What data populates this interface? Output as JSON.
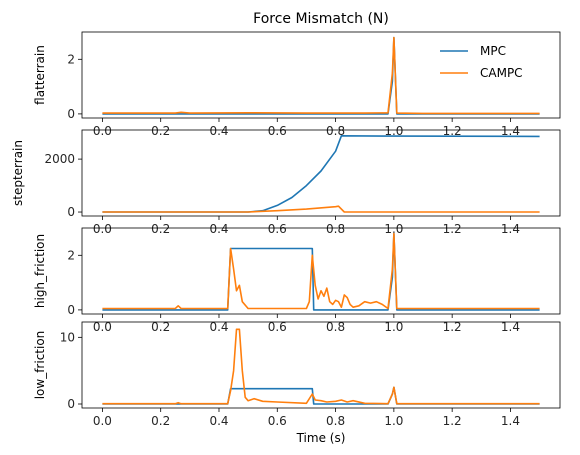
{
  "chart_data": {
    "type": "line",
    "title": "Force Mismatch (N)",
    "xlabel": "Time (s)",
    "xlim": [
      -0.07,
      1.57
    ],
    "x_ticks": [
      0.0,
      0.2,
      0.4,
      0.6,
      0.8,
      1.0,
      1.2,
      1.4
    ],
    "x_tick_labels": [
      "0.0",
      "0.2",
      "0.4",
      "0.6",
      "0.8",
      "1.0",
      "1.2",
      "1.4"
    ],
    "legend": {
      "placement": "top-right",
      "entries": [
        "MPC",
        "CAMPC"
      ]
    },
    "colors": {
      "MPC": "#1f77b4",
      "CAMPC": "#ff7f0e"
    },
    "grid": false,
    "subplots": [
      {
        "ylabel": "flatterrain",
        "ylim": [
          -0.15,
          3.0
        ],
        "y_ticks": [
          0,
          2
        ],
        "y_tick_labels": [
          "0",
          "2"
        ],
        "series": [
          {
            "name": "MPC",
            "x": [
              0.0,
              0.98,
              0.995,
              1.0,
              1.01,
              1.5
            ],
            "y": [
              0.0,
              0.0,
              1.2,
              2.8,
              0.0,
              0.0
            ]
          },
          {
            "name": "CAMPC",
            "x": [
              0.0,
              0.1,
              0.25,
              0.27,
              0.3,
              0.5,
              0.7,
              0.9,
              0.98,
              0.995,
              1.0,
              1.01,
              1.1,
              1.3,
              1.5
            ],
            "y": [
              0.03,
              0.03,
              0.03,
              0.06,
              0.03,
              0.04,
              0.03,
              0.03,
              0.04,
              1.5,
              2.8,
              0.03,
              0.02,
              0.02,
              0.02
            ]
          }
        ]
      },
      {
        "ylabel": "stepterrain",
        "ylim": [
          -150,
          3100
        ],
        "y_ticks": [
          0,
          2000
        ],
        "y_tick_labels": [
          "0",
          "2000"
        ],
        "series": [
          {
            "name": "MPC",
            "x": [
              0.0,
              0.5,
              0.55,
              0.6,
              0.65,
              0.7,
              0.75,
              0.8,
              0.82,
              1.0,
              1.5
            ],
            "y": [
              0.0,
              0.0,
              50,
              250,
              550,
              1000,
              1550,
              2300,
              2880,
              2870,
              2860
            ]
          },
          {
            "name": "CAMPC",
            "x": [
              0.0,
              0.5,
              0.6,
              0.7,
              0.8,
              0.81,
              0.83,
              1.0,
              1.5
            ],
            "y": [
              0.0,
              0.0,
              50,
              110,
              200,
              220,
              0.0,
              0.0,
              0.0
            ]
          }
        ]
      },
      {
        "ylabel": "high_friction",
        "ylim": [
          -0.15,
          3.0
        ],
        "y_ticks": [
          0,
          2
        ],
        "y_tick_labels": [
          "0",
          "2"
        ],
        "series": [
          {
            "name": "MPC",
            "x": [
              0.0,
              0.43,
              0.44,
              0.71,
              0.72,
              0.725,
              0.8,
              0.9,
              0.98,
              0.995,
              1.0,
              1.01,
              1.5
            ],
            "y": [
              0.0,
              0.0,
              2.25,
              2.25,
              2.25,
              0.0,
              0.0,
              0.0,
              0.0,
              1.2,
              2.8,
              0.0,
              0.0
            ]
          },
          {
            "name": "CAMPC",
            "x": [
              0.0,
              0.25,
              0.26,
              0.27,
              0.43,
              0.44,
              0.45,
              0.46,
              0.47,
              0.48,
              0.5,
              0.7,
              0.71,
              0.72,
              0.73,
              0.74,
              0.75,
              0.76,
              0.77,
              0.78,
              0.79,
              0.8,
              0.81,
              0.82,
              0.83,
              0.84,
              0.85,
              0.86,
              0.88,
              0.9,
              0.92,
              0.94,
              0.96,
              0.98,
              0.995,
              1.0,
              1.01,
              1.1,
              1.5
            ],
            "y": [
              0.05,
              0.05,
              0.15,
              0.05,
              0.05,
              2.25,
              1.5,
              0.7,
              0.9,
              0.3,
              0.05,
              0.05,
              0.3,
              2.0,
              0.9,
              0.4,
              0.7,
              0.5,
              0.8,
              0.3,
              0.2,
              0.35,
              0.3,
              0.1,
              0.55,
              0.45,
              0.2,
              0.1,
              0.15,
              0.3,
              0.25,
              0.3,
              0.2,
              0.05,
              1.5,
              2.8,
              0.05,
              0.05,
              0.05
            ]
          }
        ]
      },
      {
        "ylabel": "low_friction",
        "ylim": [
          -0.6,
          12.3
        ],
        "y_ticks": [
          0,
          10
        ],
        "y_tick_labels": [
          "0",
          "10"
        ],
        "series": [
          {
            "name": "MPC",
            "x": [
              0.0,
              0.43,
              0.44,
              0.71,
              0.72,
              0.725,
              0.8,
              0.9,
              0.98,
              0.995,
              1.0,
              1.01,
              1.5
            ],
            "y": [
              0.0,
              0.0,
              2.3,
              2.3,
              2.3,
              0.0,
              0.0,
              0.0,
              0.0,
              1.5,
              2.5,
              0.0,
              0.0
            ]
          },
          {
            "name": "CAMPC",
            "x": [
              0.0,
              0.25,
              0.26,
              0.27,
              0.43,
              0.44,
              0.45,
              0.46,
              0.47,
              0.48,
              0.49,
              0.5,
              0.52,
              0.55,
              0.6,
              0.7,
              0.72,
              0.73,
              0.75,
              0.77,
              0.8,
              0.82,
              0.84,
              0.86,
              0.9,
              0.98,
              0.995,
              1.0,
              1.01,
              1.1,
              1.5
            ],
            "y": [
              0.05,
              0.05,
              0.2,
              0.05,
              0.05,
              2.0,
              5.0,
              11.2,
              11.2,
              5.0,
              1.0,
              0.5,
              0.8,
              0.4,
              0.3,
              0.1,
              1.5,
              0.6,
              0.5,
              0.3,
              0.4,
              0.6,
              0.3,
              0.5,
              0.1,
              0.05,
              1.5,
              2.5,
              0.05,
              0.05,
              0.05
            ]
          }
        ]
      }
    ]
  }
}
